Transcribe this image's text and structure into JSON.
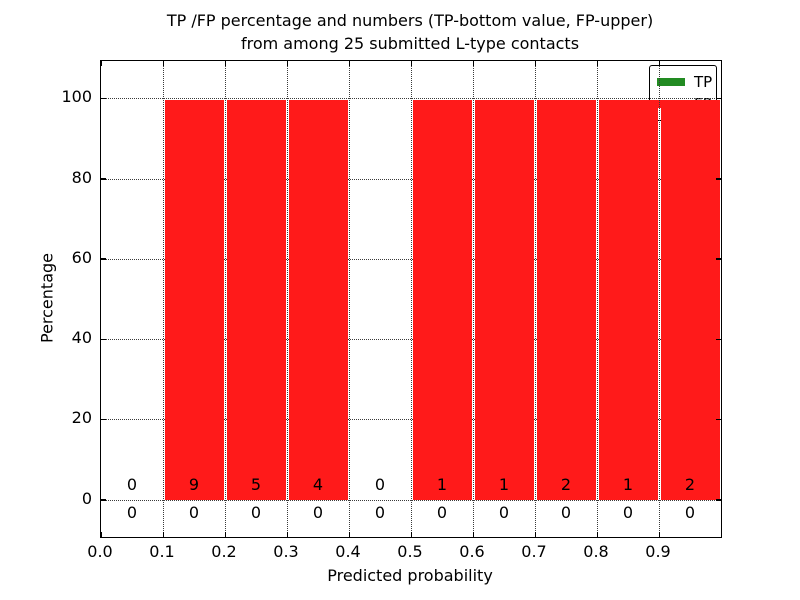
{
  "figure": {
    "title_line1": "TP /FP percentage and numbers (TP-bottom value, FP-upper)",
    "title_line2": "from among 25 submitted L-type contacts"
  },
  "chart_data": {
    "type": "bar",
    "title": "TP /FP percentage and numbers (TP-bottom value, FP-upper) from among 25 submitted L-type contacts",
    "xlabel": "Predicted probability",
    "ylabel": "Percentage",
    "xlim": [
      0,
      1.0
    ],
    "ylim": [
      -9.3,
      109.3
    ],
    "grid": true,
    "xticks": [
      0,
      0.1,
      0.2,
      0.3,
      0.4,
      0.5,
      0.6,
      0.7,
      0.8,
      0.9
    ],
    "xtick_labels": [
      "0.0",
      "0.1",
      "0.2",
      "0.3",
      "0.4",
      "0.5",
      "0.6",
      "0.7",
      "0.8",
      "0.9"
    ],
    "yticks": [
      0,
      20,
      40,
      60,
      80,
      100
    ],
    "ytick_labels": [
      "0",
      "20",
      "40",
      "60",
      "80",
      "100"
    ],
    "bin_edges": [
      0,
      0.1,
      0.2,
      0.3,
      0.4,
      0.5,
      0.6,
      0.7,
      0.8,
      0.9,
      1.0
    ],
    "legend": {
      "position": "upper right",
      "entries": [
        {
          "label": "TP",
          "color": "#228B22"
        },
        {
          "label": "FP",
          "color": "#ff1a1a"
        }
      ]
    },
    "series": [
      {
        "name": "TP",
        "color": "#228B22",
        "counts": [
          0,
          0,
          0,
          0,
          0,
          0,
          0,
          0,
          0,
          0
        ],
        "percent": [
          0,
          0,
          0,
          0,
          0,
          0,
          0,
          0,
          0,
          0
        ]
      },
      {
        "name": "FP",
        "color": "#ff1a1a",
        "counts": [
          0,
          9,
          5,
          4,
          0,
          1,
          1,
          2,
          1,
          2
        ],
        "percent": [
          0,
          99.5,
          99.5,
          99.5,
          0,
          99.5,
          99.5,
          99.5,
          99.5,
          99.5
        ]
      }
    ]
  }
}
